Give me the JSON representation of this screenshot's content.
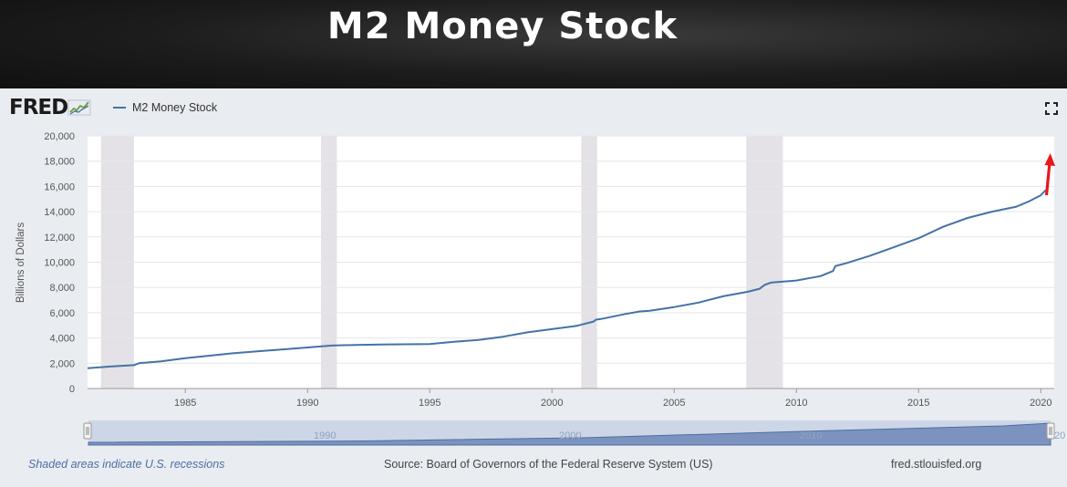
{
  "banner": {
    "title": "M2 Money Stock"
  },
  "logo": {
    "text": "FRED"
  },
  "legend": {
    "series_label": "M2 Money Stock",
    "color": "#4572a7"
  },
  "footer": {
    "note": "Shaded areas indicate U.S. recessions",
    "source": "Source: Board of Governors of the Federal Reserve System (US)",
    "site": "fred.stlouisfed.org"
  },
  "navigator": {
    "tick_labels": [
      "1990",
      "2000",
      "2010",
      "20"
    ]
  },
  "annotation": {
    "type": "red-arrow-up",
    "color": "#e8161b"
  },
  "chart_data": {
    "type": "line",
    "title": "",
    "xlabel": "",
    "ylabel": "Billions of Dollars",
    "xlim": [
      1981.0,
      2020.55
    ],
    "ylim": [
      0,
      20000
    ],
    "xticks": [
      1985,
      1990,
      1995,
      2000,
      2005,
      2010,
      2015,
      2020
    ],
    "yticks": [
      0,
      2000,
      4000,
      6000,
      8000,
      10000,
      12000,
      14000,
      16000,
      18000,
      20000
    ],
    "ytick_labels": [
      "0",
      "2,000",
      "4,000",
      "6,000",
      "8,000",
      "10,000",
      "12,000",
      "14,000",
      "16,000",
      "18,000",
      "20,000"
    ],
    "grid": "horizontal",
    "recessions": [
      [
        1981.55,
        1982.9
      ],
      [
        1990.55,
        1991.2
      ],
      [
        2001.2,
        2001.85
      ],
      [
        2007.95,
        2009.45
      ]
    ],
    "series": [
      {
        "name": "M2 Money Stock",
        "color": "#4572a7",
        "x": [
          1981.0,
          1982.0,
          1982.9,
          1983.1,
          1984.0,
          1985.0,
          1986.0,
          1987.0,
          1988.0,
          1989.0,
          1990.0,
          1991.0,
          1992.0,
          1993.0,
          1994.0,
          1995.0,
          1996.0,
          1997.0,
          1998.0,
          1999.0,
          2000.0,
          2001.0,
          2001.7,
          2001.8,
          2002.0,
          2003.0,
          2003.6,
          2004.0,
          2005.0,
          2006.0,
          2007.0,
          2008.0,
          2008.5,
          2008.7,
          2008.9,
          2009.0,
          2010.0,
          2011.0,
          2011.5,
          2011.6,
          2012.0,
          2013.0,
          2014.0,
          2015.0,
          2016.0,
          2017.0,
          2018.0,
          2019.0,
          2019.5,
          2020.0,
          2020.1,
          2020.2
        ],
        "y": [
          1600,
          1750,
          1850,
          2000,
          2150,
          2400,
          2600,
          2800,
          2950,
          3100,
          3250,
          3400,
          3450,
          3480,
          3500,
          3520,
          3700,
          3850,
          4100,
          4450,
          4700,
          4950,
          5300,
          5450,
          5500,
          5900,
          6100,
          6150,
          6450,
          6800,
          7300,
          7650,
          7900,
          8200,
          8350,
          8400,
          8550,
          8900,
          9300,
          9700,
          9900,
          10500,
          11200,
          11900,
          12800,
          13500,
          14000,
          14400,
          14800,
          15300,
          15500,
          15700
        ]
      }
    ]
  }
}
